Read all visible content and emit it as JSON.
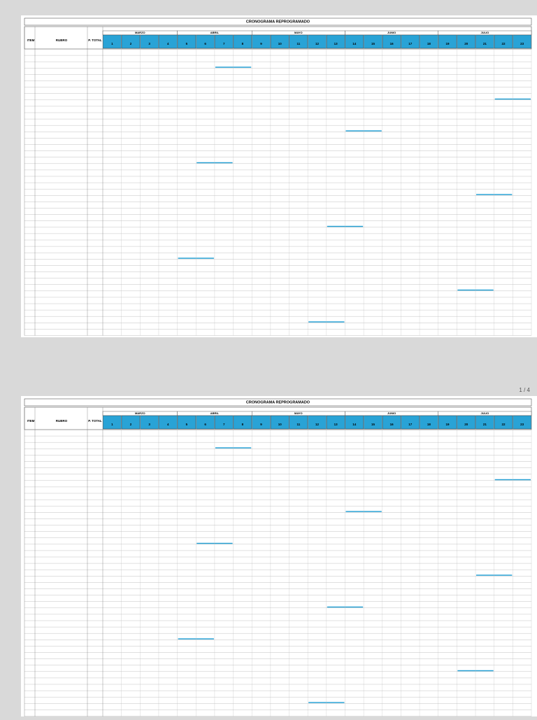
{
  "header": {
    "title": "CRONOGRAMA REPROGRAMADO",
    "columns": {
      "item": "ITEM",
      "rubro": "RUBRO",
      "total": "P. TOTAL"
    },
    "months": [
      "MARZO",
      "ABRIL",
      "MAYO",
      "JUNIO",
      "JULIO"
    ],
    "weeks": [
      1,
      2,
      3,
      4,
      5,
      6,
      7,
      8,
      9,
      10,
      11,
      12,
      13,
      14,
      15,
      16,
      17,
      18,
      19,
      20,
      21,
      22,
      23
    ]
  },
  "pagination": "1 / 4"
}
